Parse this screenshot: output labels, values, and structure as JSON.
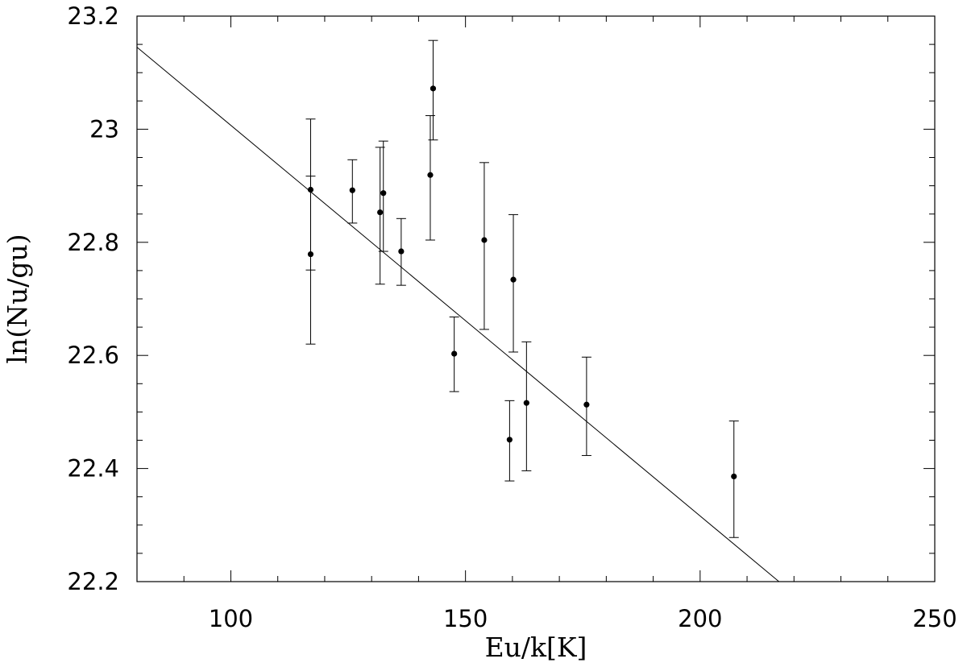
{
  "chart_data": {
    "type": "scatter",
    "title": "",
    "xlabel": "Eu/k[K]",
    "ylabel": "ln(Nu/gu)",
    "xlim": [
      80,
      250
    ],
    "ylim": [
      22.2,
      23.2
    ],
    "xticks": [
      "100",
      "150",
      "200",
      "250"
    ],
    "yticks": [
      "22.2",
      "22.4",
      "22.6",
      "22.8",
      "23",
      "23.2"
    ],
    "grid": false,
    "series": [
      {
        "points": [
          {
            "x": 117.0,
            "y": 22.893,
            "lo": 22.751,
            "hi": 23.018
          },
          {
            "x": 117.0,
            "y": 22.779,
            "lo": 22.62,
            "hi": 22.917
          },
          {
            "x": 125.9,
            "y": 22.892,
            "lo": 22.834,
            "hi": 22.946
          },
          {
            "x": 131.8,
            "y": 22.853,
            "lo": 22.726,
            "hi": 22.968
          },
          {
            "x": 132.5,
            "y": 22.887,
            "lo": 22.784,
            "hi": 22.979
          },
          {
            "x": 136.3,
            "y": 22.784,
            "lo": 22.724,
            "hi": 22.842
          },
          {
            "x": 142.5,
            "y": 22.919,
            "lo": 22.804,
            "hi": 23.024
          },
          {
            "x": 143.1,
            "y": 23.072,
            "lo": 22.981,
            "hi": 23.157
          },
          {
            "x": 147.6,
            "y": 22.603,
            "lo": 22.536,
            "hi": 22.668
          },
          {
            "x": 154.0,
            "y": 22.804,
            "lo": 22.646,
            "hi": 22.941
          },
          {
            "x": 159.4,
            "y": 22.451,
            "lo": 22.378,
            "hi": 22.52
          },
          {
            "x": 160.2,
            "y": 22.734,
            "lo": 22.606,
            "hi": 22.849
          },
          {
            "x": 163.0,
            "y": 22.516,
            "lo": 22.396,
            "hi": 22.624
          },
          {
            "x": 175.8,
            "y": 22.513,
            "lo": 22.423,
            "hi": 22.597
          },
          {
            "x": 207.2,
            "y": 22.386,
            "lo": 22.278,
            "hi": 22.484
          }
        ]
      }
    ],
    "fit_line": {
      "x": [
        80,
        216.8
      ],
      "y": [
        23.145,
        22.2
      ]
    }
  }
}
